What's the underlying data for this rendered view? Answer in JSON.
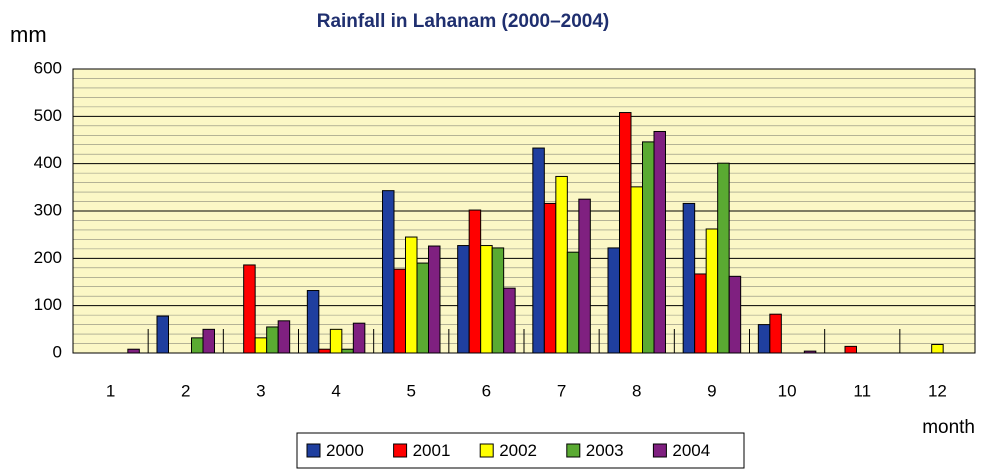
{
  "chart_data": {
    "type": "bar",
    "title": "Rainfall in Lahanam (2000–2004)",
    "y_label": "mm",
    "x_label": "month",
    "categories": [
      "1",
      "2",
      "3",
      "4",
      "5",
      "6",
      "7",
      "8",
      "9",
      "10",
      "11",
      "12"
    ],
    "series": [
      {
        "name": "2000",
        "color": "#1f3f9f",
        "values": [
          0,
          78,
          0,
          132,
          343,
          227,
          433,
          222,
          316,
          60,
          0,
          0
        ]
      },
      {
        "name": "2001",
        "color": "#ff0000",
        "values": [
          0,
          0,
          186,
          8,
          177,
          302,
          316,
          508,
          167,
          82,
          14,
          0
        ]
      },
      {
        "name": "2002",
        "color": "#ffff00",
        "values": [
          0,
          0,
          32,
          50,
          245,
          227,
          373,
          351,
          262,
          0,
          0,
          18
        ]
      },
      {
        "name": "2003",
        "color": "#5aaa32",
        "values": [
          0,
          32,
          55,
          8,
          190,
          222,
          213,
          446,
          401,
          0,
          0,
          0
        ]
      },
      {
        "name": "2004",
        "color": "#7f2080",
        "values": [
          8,
          50,
          68,
          63,
          226,
          137,
          325,
          468,
          162,
          4,
          0,
          0
        ]
      }
    ],
    "ylim": [
      0,
      600
    ],
    "yticks": [
      0,
      100,
      200,
      300,
      400,
      500,
      600
    ],
    "grid": true,
    "legend": "bottom"
  }
}
